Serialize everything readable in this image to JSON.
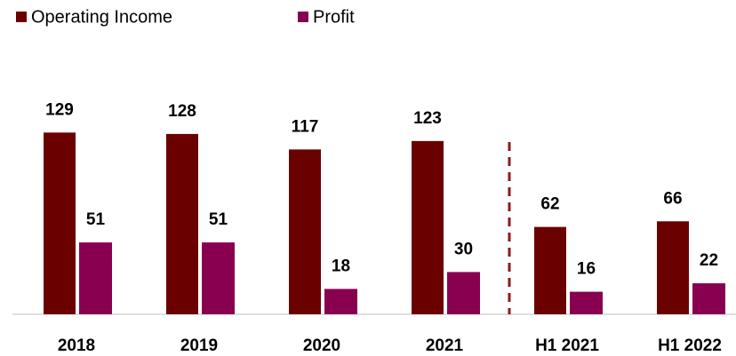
{
  "chart_data": {
    "type": "bar",
    "categories": [
      "2018",
      "2019",
      "2020",
      "2021",
      "H1 2021",
      "H1 2022"
    ],
    "series": [
      {
        "name": "Operating Income",
        "color": "#6b0000",
        "values": [
          129,
          128,
          117,
          123,
          62,
          66
        ]
      },
      {
        "name": "Profit",
        "color": "#8a0050",
        "values": [
          51,
          51,
          18,
          30,
          16,
          22
        ]
      }
    ],
    "ylim": [
      0,
      150
    ],
    "legend": "top-left"
  }
}
